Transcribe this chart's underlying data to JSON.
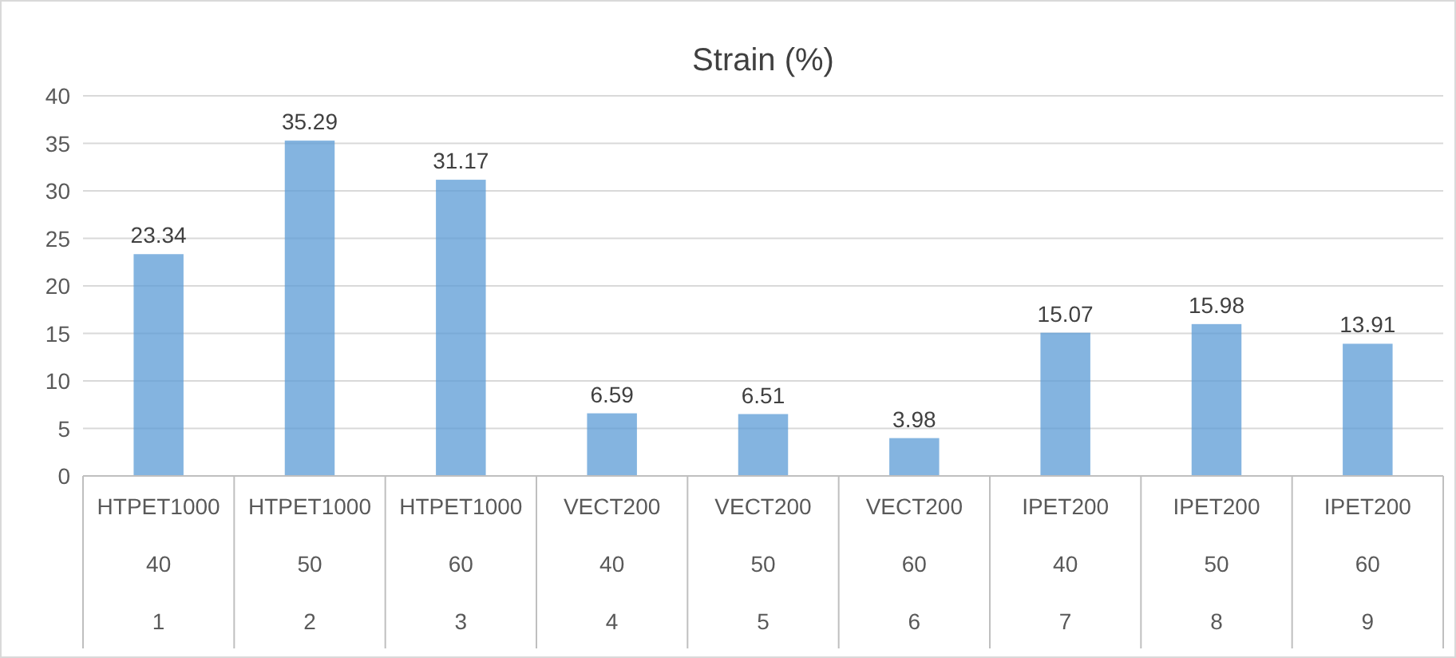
{
  "chart_data": {
    "type": "bar",
    "title": "Strain (%)",
    "categories": [
      "HTPET1000\n40\n1",
      "HTPET1000\n50\n2",
      "HTPET1000\n60\n3",
      "VECT200\n40\n4",
      "VECT200\n50\n5",
      "VECT200\n60\n6",
      "IPET200\n40\n7",
      "IPET200\n50\n8",
      "IPET200\n60\n9"
    ],
    "values": [
      23.34,
      35.29,
      31.17,
      6.59,
      6.51,
      3.98,
      15.07,
      15.98,
      13.91
    ],
    "color": "#5b9bd5",
    "data_labels": true,
    "ylim": [
      0,
      40
    ],
    "yticks": [
      0,
      5,
      10,
      15,
      20,
      25,
      30,
      35,
      40
    ],
    "grid": "y"
  }
}
